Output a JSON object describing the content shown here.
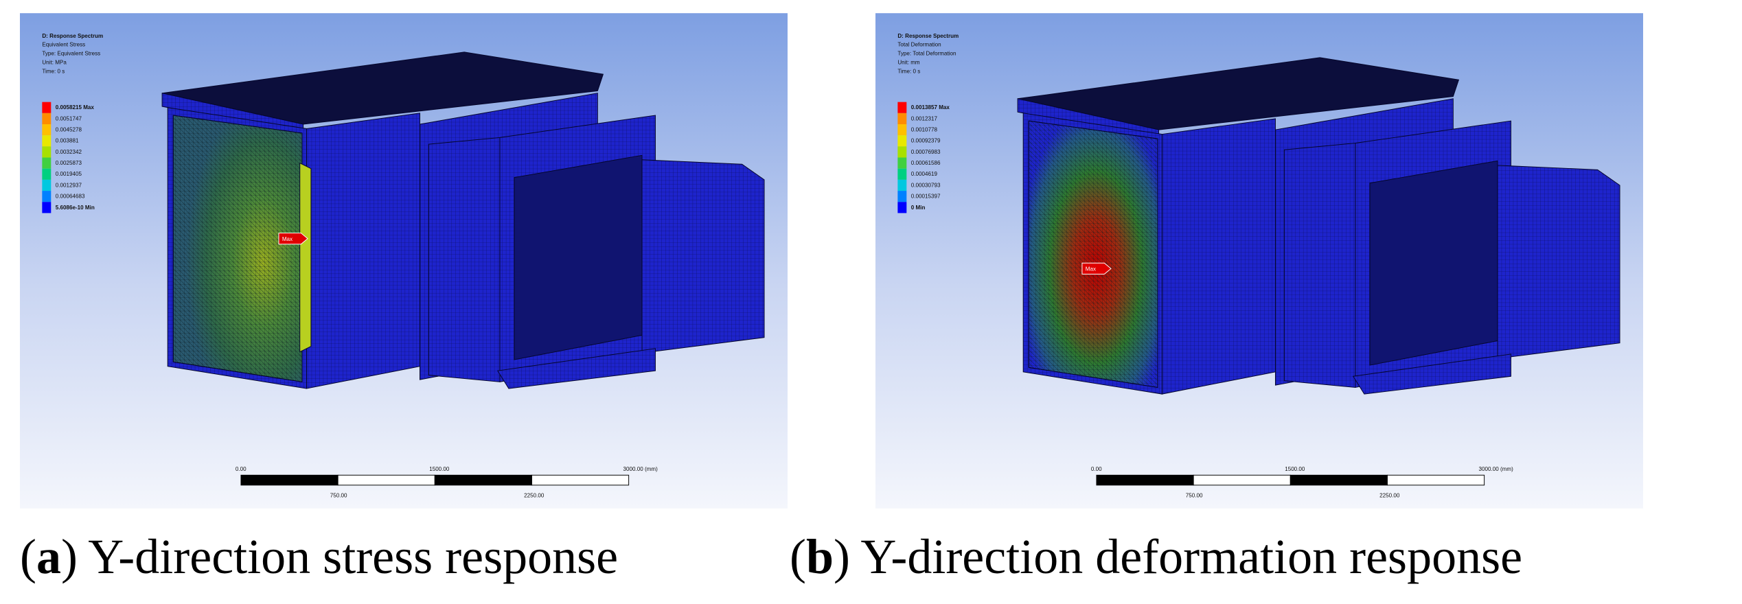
{
  "panels": [
    {
      "header": [
        "D: Response Spectrum",
        "Equivalent Stress",
        "Type: Equivalent Stress",
        "Unit: MPa",
        "Time: 0 s"
      ],
      "legend": [
        "0.0058215 Max",
        "0.0051747",
        "0.0045278",
        "0.003881",
        "0.0032342",
        "0.0025873",
        "0.0019405",
        "0.0012937",
        "0.00064683",
        "5.6086e-10 Min"
      ],
      "probe": "Max",
      "scale_top": [
        "0.00",
        "1500.00",
        "3000.00 (mm)"
      ],
      "scale_bottom": [
        "750.00",
        "2250.00"
      ],
      "caption": [
        "(",
        "a",
        ") Y-direction stress response"
      ]
    },
    {
      "header": [
        "D: Response Spectrum",
        "Total Deformation",
        "Type: Total Deformation",
        "Unit: mm",
        "Time: 0 s"
      ],
      "legend": [
        "0.0013857 Max",
        "0.0012317",
        "0.0010778",
        "0.00092379",
        "0.00076983",
        "0.00061586",
        "0.0004619",
        "0.00030793",
        "0.00015397",
        "0 Min"
      ],
      "probe": "Max",
      "scale_top": [
        "0.00",
        "1500.00",
        "3000.00 (mm)"
      ],
      "scale_bottom": [
        "750.00",
        "2250.00"
      ],
      "caption": [
        "(",
        "b",
        ") Y-direction deformation response"
      ]
    }
  ],
  "legend_colors": [
    "#ff0000",
    "#ff8c00",
    "#ffc000",
    "#e8e800",
    "#a8e000",
    "#40d040",
    "#00d080",
    "#00c8e0",
    "#0080ff",
    "#0000ff"
  ]
}
